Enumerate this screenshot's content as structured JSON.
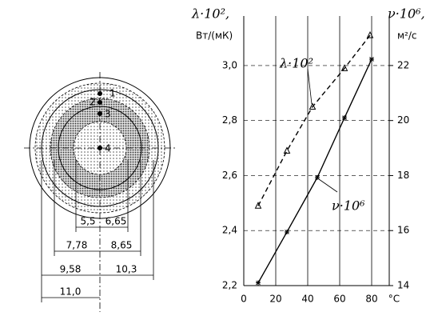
{
  "diagram": {
    "points": [
      "1",
      "2",
      "3",
      "4"
    ],
    "dimensions": [
      "5,5",
      "6,65",
      "7,78",
      "8,65",
      "9,58",
      "10,3",
      "11,0"
    ]
  },
  "chart_data": {
    "type": "line",
    "ylabel": "λ·10²,",
    "yunit": "Вт/(мК)",
    "y2label": "ν·10⁶,",
    "y2unit": "м²/с",
    "xlabel": "°C",
    "xlim": [
      0,
      91
    ],
    "xticks": [
      0,
      20,
      40,
      60,
      80
    ],
    "ylim": [
      2.2,
      3.18
    ],
    "yticks": [
      {
        "value": 2.2,
        "label": "2,2"
      },
      {
        "value": 2.4,
        "label": "2,4"
      },
      {
        "value": 2.6,
        "label": "2,6"
      },
      {
        "value": 2.8,
        "label": "2,8"
      },
      {
        "value": 3.0,
        "label": "3,0"
      }
    ],
    "y2lim": [
      14,
      23.8
    ],
    "y2ticks": [
      14,
      16,
      18,
      20,
      22
    ],
    "grid": true,
    "series": [
      {
        "name": "λ·10²",
        "color": "#000",
        "dash": true,
        "marker": "triangle",
        "x": [
          9,
          27,
          43,
          63,
          79
        ],
        "values": [
          2.49,
          2.69,
          2.85,
          2.99,
          3.11
        ]
      },
      {
        "name": "ν·10⁶",
        "color": "#000",
        "dash": false,
        "marker": "star",
        "axis": "y2",
        "x": [
          9,
          27,
          46,
          63,
          80
        ],
        "values": [
          14.1,
          15.95,
          17.93,
          20.1,
          22.23
        ]
      }
    ]
  }
}
